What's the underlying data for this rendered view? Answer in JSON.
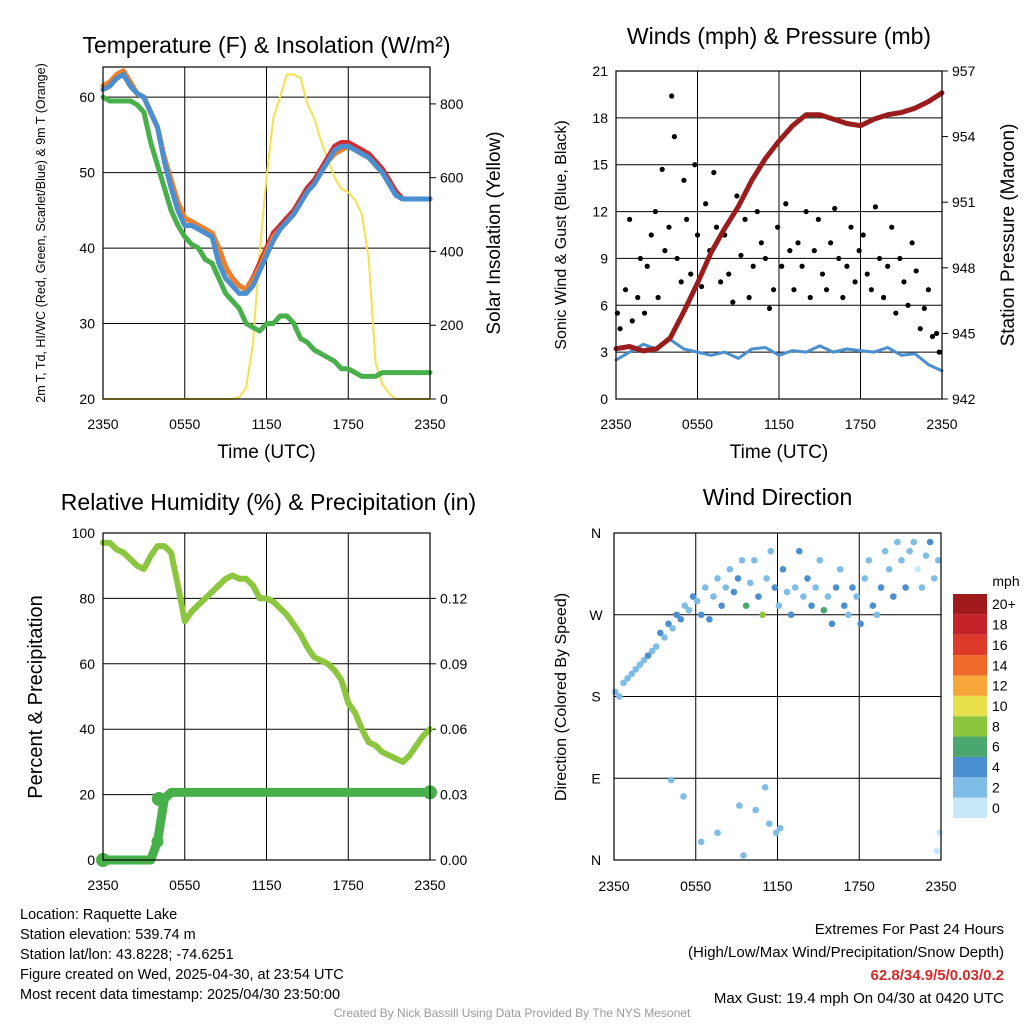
{
  "chart_data": [
    {
      "type": "line",
      "title": "Temperature (F) & Insolation (W/m²)",
      "xlabel": "Time (UTC)",
      "ylabel_left": "2m T, Td, HI/WC (Red, Green, Scarlet/Blue) & 9m T (Orange)",
      "ylabel_right": "Solar Insolation (Yellow)",
      "x_ticks": [
        "2350",
        "0550",
        "1150",
        "1750",
        "2350"
      ],
      "y_ticks_left": [
        "20",
        "30",
        "40",
        "50",
        "60"
      ],
      "y_ticks_right": [
        "0",
        "200",
        "400",
        "600",
        "800"
      ],
      "ylim_left": [
        20,
        64
      ],
      "ylim_right": [
        0,
        900
      ],
      "grid": true,
      "x_hours": [
        0,
        0.5,
        1,
        1.5,
        2,
        2.5,
        3,
        3.5,
        4,
        4.5,
        5,
        5.5,
        6,
        6.5,
        7,
        7.5,
        8,
        8.5,
        9,
        9.5,
        10,
        10.5,
        11,
        11.5,
        12,
        12.5,
        13,
        13.5,
        14,
        14.5,
        15,
        15.5,
        16,
        16.5,
        17,
        17.5,
        18,
        18.5,
        19,
        19.5,
        20,
        20.5,
        21,
        21.5,
        22,
        22.5,
        23,
        23.5,
        24
      ],
      "series": [
        {
          "name": "2m T",
          "color": "#d42a2a",
          "values": [
            61,
            61.5,
            62.5,
            63,
            61.5,
            60.5,
            60,
            58,
            56,
            52,
            49,
            46,
            44,
            43.5,
            43,
            42.5,
            42,
            40,
            37.5,
            36,
            35,
            34.5,
            36,
            38,
            40,
            42,
            43,
            44,
            45,
            46.5,
            48,
            49,
            50.5,
            52,
            53.5,
            54,
            54,
            53.5,
            53,
            52.5,
            51.5,
            50.5,
            49,
            47.5,
            46.5,
            46.5,
            46.5,
            46.5,
            46.5
          ]
        },
        {
          "name": "9m T",
          "color": "#f07d2a",
          "values": [
            61.5,
            62,
            63,
            63.5,
            62,
            60.5,
            60,
            58,
            56,
            52,
            49,
            46,
            44,
            43.5,
            43,
            42.5,
            42,
            40,
            37.5,
            36,
            35,
            34.5,
            35.8,
            37.5,
            39.5,
            41.5,
            42.5,
            43.5,
            44.5,
            46,
            47.5,
            48.5,
            50,
            51.5,
            52.5,
            53,
            53.5,
            53,
            52.5,
            52,
            51,
            50,
            48.5,
            47,
            46.5,
            46.5,
            46.5,
            46.5,
            46.5
          ]
        },
        {
          "name": "HI/WC",
          "color": "#4a8fd0",
          "values": [
            61,
            61.5,
            62.5,
            63,
            61.5,
            60.5,
            60,
            58,
            56,
            51.5,
            48,
            45,
            43,
            43,
            42.5,
            42,
            41.5,
            38,
            36,
            35,
            34,
            34,
            35,
            37,
            39,
            41,
            42.5,
            43.5,
            44.5,
            46,
            47.5,
            48.5,
            50,
            51.5,
            53,
            53.5,
            53.5,
            53,
            52.5,
            52,
            51,
            50,
            48.5,
            47,
            46.5,
            46.5,
            46.5,
            46.5,
            46.5
          ]
        },
        {
          "name": "2m Td",
          "color": "#47b04a",
          "values": [
            60,
            59.5,
            59.5,
            59.5,
            59.5,
            59,
            58,
            54,
            51,
            48,
            45,
            43,
            41.5,
            40.5,
            40,
            38.5,
            38,
            36,
            34,
            33,
            32,
            30,
            29.5,
            29,
            30,
            30,
            31,
            31,
            30,
            28,
            27.5,
            26.5,
            26,
            25.5,
            25,
            24,
            24,
            23.5,
            23,
            23,
            23,
            23.5,
            23.5,
            23.5,
            23.5,
            23.5,
            23.5,
            23.5,
            23.5
          ]
        },
        {
          "name": "Solar Insolation",
          "axis": "right",
          "color": "#f5e24a",
          "values": [
            0,
            0,
            0,
            0,
            0,
            0,
            0,
            0,
            0,
            0,
            0,
            0,
            0,
            0,
            0,
            0,
            0,
            0,
            0,
            0,
            5,
            30,
            150,
            400,
            600,
            760,
            820,
            880,
            880,
            870,
            800,
            760,
            700,
            650,
            600,
            570,
            560,
            540,
            500,
            380,
            100,
            40,
            15,
            0,
            0,
            0,
            0,
            0,
            0
          ]
        }
      ]
    },
    {
      "type": "scatter",
      "title": "Winds (mph) & Pressure (mb)",
      "xlabel": "Time (UTC)",
      "ylabel_left": "Sonic Wind & Gust (Blue, Black)",
      "ylabel_right": "Station Pressure (Maroon)",
      "x_ticks": [
        "2350",
        "0550",
        "1150",
        "1750",
        "2350"
      ],
      "y_ticks_left": [
        "0",
        "3",
        "6",
        "9",
        "12",
        "15",
        "18",
        "21"
      ],
      "y_ticks_right": [
        "942",
        "945",
        "948",
        "951",
        "954",
        "957"
      ],
      "ylim_left": [
        0,
        21
      ],
      "ylim_right": [
        942,
        957
      ],
      "grid": true,
      "wind_x_hours": [
        0,
        1,
        2,
        3,
        4,
        5,
        6,
        7,
        8,
        9,
        10,
        11,
        12,
        13,
        14,
        15,
        16,
        17,
        18,
        19,
        20,
        21,
        22,
        23,
        24
      ],
      "wind_values": [
        2.5,
        3,
        3.5,
        3.2,
        3.8,
        3.2,
        3,
        2.8,
        3,
        2.6,
        3.2,
        3.3,
        2.8,
        3.1,
        3,
        3.4,
        3,
        3.2,
        3.1,
        3,
        3.3,
        2.8,
        2.9,
        2.2,
        1.8
      ],
      "pressure_x_hours": [
        0,
        1,
        2,
        3,
        4,
        5,
        6,
        7,
        8,
        9,
        10,
        11,
        12,
        13,
        14,
        15,
        16,
        17,
        18,
        19,
        20,
        21,
        22,
        23,
        24
      ],
      "pressure_values": [
        944.3,
        944.4,
        944.2,
        944.3,
        944.8,
        946,
        947.3,
        948.7,
        949.8,
        950.8,
        952,
        953,
        953.8,
        954.5,
        955,
        955,
        954.8,
        954.6,
        954.5,
        954.8,
        955,
        955.1,
        955.3,
        955.6,
        956
      ],
      "gust_x_hours": [
        0.1,
        0.3,
        0.7,
        1.0,
        1.2,
        1.6,
        1.8,
        2.1,
        2.3,
        2.6,
        2.9,
        3.1,
        3.4,
        3.6,
        3.9,
        4.1,
        4.3,
        4.5,
        4.8,
        5.0,
        5.2,
        5.5,
        5.8,
        6.0,
        6.3,
        6.6,
        6.9,
        7.2,
        7.4,
        7.7,
        8.0,
        8.3,
        8.6,
        8.9,
        9.2,
        9.5,
        9.8,
        10.1,
        10.4,
        10.7,
        11.0,
        11.3,
        11.6,
        11.9,
        12.2,
        12.5,
        12.8,
        13.1,
        13.4,
        13.7,
        14.0,
        14.3,
        14.6,
        14.9,
        15.2,
        15.5,
        15.8,
        16.1,
        16.4,
        16.7,
        17.0,
        17.3,
        17.6,
        17.9,
        18.2,
        18.5,
        18.8,
        19.1,
        19.4,
        19.7,
        20.0,
        20.3,
        20.6,
        20.9,
        21.2,
        21.5,
        21.8,
        22.1,
        22.4,
        22.7,
        23.0,
        23.3,
        23.6,
        23.8
      ],
      "gust_values": [
        5.5,
        4.5,
        7,
        11.5,
        5,
        6.5,
        9,
        5.5,
        8.5,
        10.5,
        12,
        6.5,
        14.7,
        9.5,
        11,
        19.4,
        16.8,
        9,
        7.5,
        14,
        11.5,
        8,
        15,
        10.5,
        7.2,
        12.5,
        9.5,
        14.5,
        11,
        7.5,
        10.5,
        8,
        6.2,
        13,
        9.2,
        11.5,
        6.5,
        8.5,
        12,
        10,
        9,
        5.8,
        7,
        11,
        8.5,
        12.5,
        9.5,
        7,
        10,
        8.5,
        12,
        6.5,
        9.5,
        11.5,
        8,
        7,
        10,
        12.2,
        9,
        6.5,
        8.5,
        11,
        7.5,
        9.5,
        10.5,
        8,
        7,
        12.3,
        9,
        6.5,
        8.5,
        11,
        5.5,
        9,
        7.5,
        6,
        10,
        8.2,
        4.5,
        5.8,
        7,
        4,
        4.2,
        3
      ]
    },
    {
      "type": "line",
      "title": "Relative Humidity (%) & Precipitation (in)",
      "ylabel_left": "Percent & Precipitation",
      "x_ticks": [
        "2350",
        "0550",
        "1150",
        "1750",
        "2350"
      ],
      "y_ticks_left": [
        "0",
        "20",
        "40",
        "60",
        "80",
        "100"
      ],
      "y_ticks_right": [
        "0.00",
        "0.03",
        "0.06",
        "0.09",
        "0.12"
      ],
      "ylim_left": [
        0,
        100
      ],
      "ylim_right": [
        0,
        0.15
      ],
      "grid": true,
      "x_hours": [
        0,
        0.5,
        1,
        1.5,
        2,
        2.5,
        3,
        3.5,
        4,
        4.5,
        5,
        5.5,
        6,
        6.5,
        7,
        7.5,
        8,
        8.5,
        9,
        9.5,
        10,
        10.5,
        11,
        11.5,
        12,
        12.5,
        13,
        13.5,
        14,
        14.5,
        15,
        15.5,
        16,
        16.5,
        17,
        17.5,
        18,
        18.5,
        19,
        19.5,
        20,
        20.5,
        21,
        21.5,
        22,
        22.5,
        23,
        23.5,
        24
      ],
      "series": [
        {
          "name": "Relative Humidity",
          "color": "#8cc63f",
          "values": [
            97,
            97,
            95,
            94,
            92,
            90,
            89,
            93,
            96,
            96,
            94,
            84,
            73,
            76,
            78,
            80,
            82,
            84,
            86,
            87,
            86,
            86,
            84,
            80,
            80,
            79,
            77,
            75,
            72,
            69,
            65,
            62,
            61,
            60,
            58,
            55,
            48,
            45,
            40,
            36,
            35,
            33,
            32,
            31,
            30,
            32,
            35,
            38,
            40
          ]
        },
        {
          "name": "Precipitation",
          "axis": "right",
          "color": "#47b04a",
          "values": [
            0,
            0,
            0,
            0,
            0,
            0,
            0,
            0,
            0.0085,
            0.028,
            0.031,
            0.031,
            0.031,
            0.031,
            0.031,
            0.031,
            0.031,
            0.031,
            0.031,
            0.031,
            0.031,
            0.031,
            0.031,
            0.031,
            0.031,
            0.031,
            0.031,
            0.031,
            0.031,
            0.031,
            0.031,
            0.031,
            0.031,
            0.031,
            0.031,
            0.031,
            0.031,
            0.031,
            0.031,
            0.031,
            0.031,
            0.031,
            0.031,
            0.031,
            0.031,
            0.031,
            0.031,
            0.031,
            0.031
          ]
        }
      ]
    },
    {
      "type": "scatter",
      "title": "Wind Direction",
      "ylabel_left": "Direction (Colored By Speed)",
      "x_ticks": [
        "2350",
        "0550",
        "1150",
        "1750",
        "2350"
      ],
      "y_ticks_left": [
        "N",
        "E",
        "S",
        "W",
        "N"
      ],
      "ylim_degrees": [
        0,
        360
      ],
      "grid": true,
      "colorbar_title": "mph",
      "colorbar_labels": [
        "0",
        "2",
        "4",
        "6",
        "8",
        "10",
        "12",
        "14",
        "16",
        "18",
        "20+"
      ],
      "colorbar_colors": [
        "#c6e8f8",
        "#7fbde6",
        "#4a8fd0",
        "#4aa86f",
        "#8cc63f",
        "#e8e04a",
        "#f7a73a",
        "#ef6a2a",
        "#dd3a2a",
        "#c42228",
        "#a01a1c"
      ],
      "point_x_hours": [
        0.1,
        0.4,
        0.7,
        1.0,
        1.3,
        1.6,
        1.9,
        2.2,
        2.5,
        2.8,
        3.1,
        3.4,
        3.7,
        4.0,
        4.3,
        4.6,
        4.9,
        5.2,
        5.5,
        5.8,
        6.1,
        6.4,
        6.7,
        7.0,
        7.3,
        7.6,
        7.9,
        8.2,
        8.5,
        8.8,
        9.1,
        9.4,
        9.7,
        10.0,
        10.3,
        10.6,
        10.9,
        11.2,
        11.5,
        11.8,
        12.1,
        12.4,
        12.7,
        13.0,
        13.3,
        13.6,
        13.9,
        14.2,
        14.5,
        14.8,
        15.1,
        15.4,
        15.7,
        16.0,
        16.3,
        16.6,
        16.9,
        17.2,
        17.5,
        17.8,
        18.1,
        18.4,
        18.7,
        19.0,
        19.3,
        19.6,
        19.9,
        20.2,
        20.5,
        20.8,
        21.1,
        21.4,
        21.7,
        22.0,
        22.3,
        22.6,
        22.9,
        23.2,
        23.5,
        23.8,
        4.2,
        5.1,
        6.4,
        7.6,
        9.2,
        9.5,
        10.4,
        11.1,
        11.4,
        11.9,
        12.2,
        23.7,
        23.9
      ],
      "point_degrees": [
        185,
        180,
        195,
        200,
        205,
        210,
        215,
        220,
        225,
        230,
        235,
        250,
        245,
        260,
        255,
        270,
        265,
        280,
        275,
        290,
        285,
        270,
        300,
        265,
        290,
        310,
        280,
        300,
        320,
        295,
        310,
        330,
        280,
        305,
        330,
        290,
        270,
        310,
        340,
        300,
        280,
        320,
        295,
        270,
        300,
        340,
        290,
        310,
        280,
        300,
        330,
        275,
        290,
        260,
        300,
        320,
        280,
        270,
        300,
        290,
        260,
        310,
        330,
        280,
        270,
        300,
        340,
        320,
        290,
        350,
        330,
        300,
        340,
        350,
        320,
        300,
        335,
        350,
        310,
        330,
        88,
        70,
        20,
        30,
        60,
        5,
        55,
        80,
        40,
        30,
        35,
        10,
        30
      ],
      "point_speeds": [
        2,
        2,
        2,
        3,
        2,
        3,
        2,
        3,
        4,
        2,
        3,
        5,
        3,
        4,
        2,
        5,
        4,
        3,
        3,
        5,
        2,
        4,
        3,
        5,
        2,
        3,
        4,
        3,
        2,
        5,
        4,
        3,
        6,
        2,
        3,
        4,
        8,
        3,
        2,
        5,
        3,
        4,
        2,
        5,
        3,
        4,
        3,
        5,
        4,
        2,
        3,
        6,
        3,
        5,
        4,
        3,
        5,
        2,
        4,
        3,
        4,
        3,
        2,
        5,
        3,
        4,
        2,
        3,
        4,
        2,
        3,
        4,
        3,
        2,
        1,
        3,
        2,
        4,
        3,
        2,
        3,
        2,
        2,
        2,
        2,
        3,
        2,
        3,
        3,
        2,
        2,
        1,
        1
      ]
    }
  ],
  "info": {
    "location": "Location: Raquette Lake",
    "elevation": "Station elevation: 539.74 m",
    "latlon": "Station lat/lon: 43.8228; -74.6251",
    "created": "Figure created on Wed, 2025-04-30, at 23:54 UTC",
    "recent": "Most recent data timestamp: 2025/04/30 23:50:00"
  },
  "extremes": {
    "title": "Extremes For Past 24 Hours",
    "subtitle": "(High/Low/Max Wind/Precipitation/Snow Depth)",
    "values": "62.8/34.9/5/0.03/0.2",
    "values_color": "#d42a2a",
    "max_gust": "Max Gust: 19.4 mph On 04/30 at 0420 UTC"
  },
  "credit": "Created By Nick Bassill Using Data Provided By The NYS Mesonet"
}
